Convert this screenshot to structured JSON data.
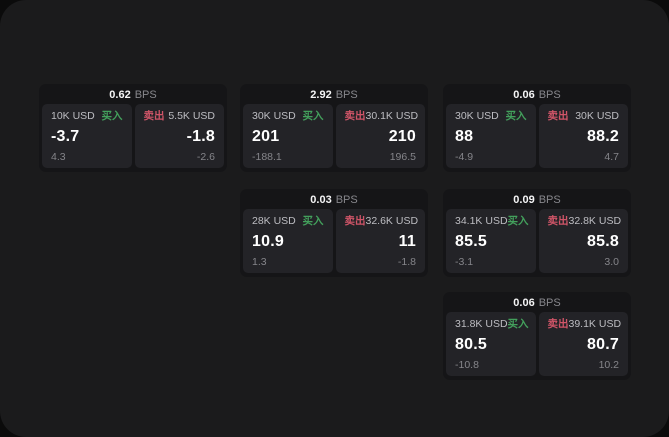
{
  "colors": {
    "frame_bg": "#1b1b1c",
    "card_bg": "#151517",
    "panel_bg": "#232327",
    "buy": "#43a05c",
    "sell": "#d05568"
  },
  "labels": {
    "bps_unit": "BPS",
    "buy": "买入",
    "sell": "卖出"
  },
  "cards": [
    {
      "bps": "0.62",
      "col": 0,
      "row": 0,
      "buy": {
        "amount": "10K USD",
        "price": "-3.7",
        "delta": "4.3"
      },
      "sell": {
        "amount": "5.5K USD",
        "price": "-1.8",
        "delta": "-2.6"
      }
    },
    {
      "bps": "2.92",
      "col": 1,
      "row": 0,
      "buy": {
        "amount": "30K USD",
        "price": "201",
        "delta": "-188.1"
      },
      "sell": {
        "amount": "30.1K USD",
        "price": "210",
        "delta": "196.5"
      }
    },
    {
      "bps": "0.06",
      "col": 2,
      "row": 0,
      "buy": {
        "amount": "30K USD",
        "price": "88",
        "delta": "-4.9"
      },
      "sell": {
        "amount": "30K USD",
        "price": "88.2",
        "delta": "4.7"
      }
    },
    {
      "bps": "0.03",
      "col": 1,
      "row": 1,
      "buy": {
        "amount": "28K USD",
        "price": "10.9",
        "delta": "1.3"
      },
      "sell": {
        "amount": "32.6K USD",
        "price": "11",
        "delta": "-1.8"
      }
    },
    {
      "bps": "0.09",
      "col": 2,
      "row": 1,
      "buy": {
        "amount": "34.1K USD",
        "price": "85.5",
        "delta": "-3.1"
      },
      "sell": {
        "amount": "32.8K USD",
        "price": "85.8",
        "delta": "3.0"
      }
    },
    {
      "bps": "0.06",
      "col": 2,
      "row": 2,
      "buy": {
        "amount": "31.8K USD",
        "price": "80.5",
        "delta": "-10.8"
      },
      "sell": {
        "amount": "39.1K USD",
        "price": "80.7",
        "delta": "10.2"
      }
    }
  ]
}
